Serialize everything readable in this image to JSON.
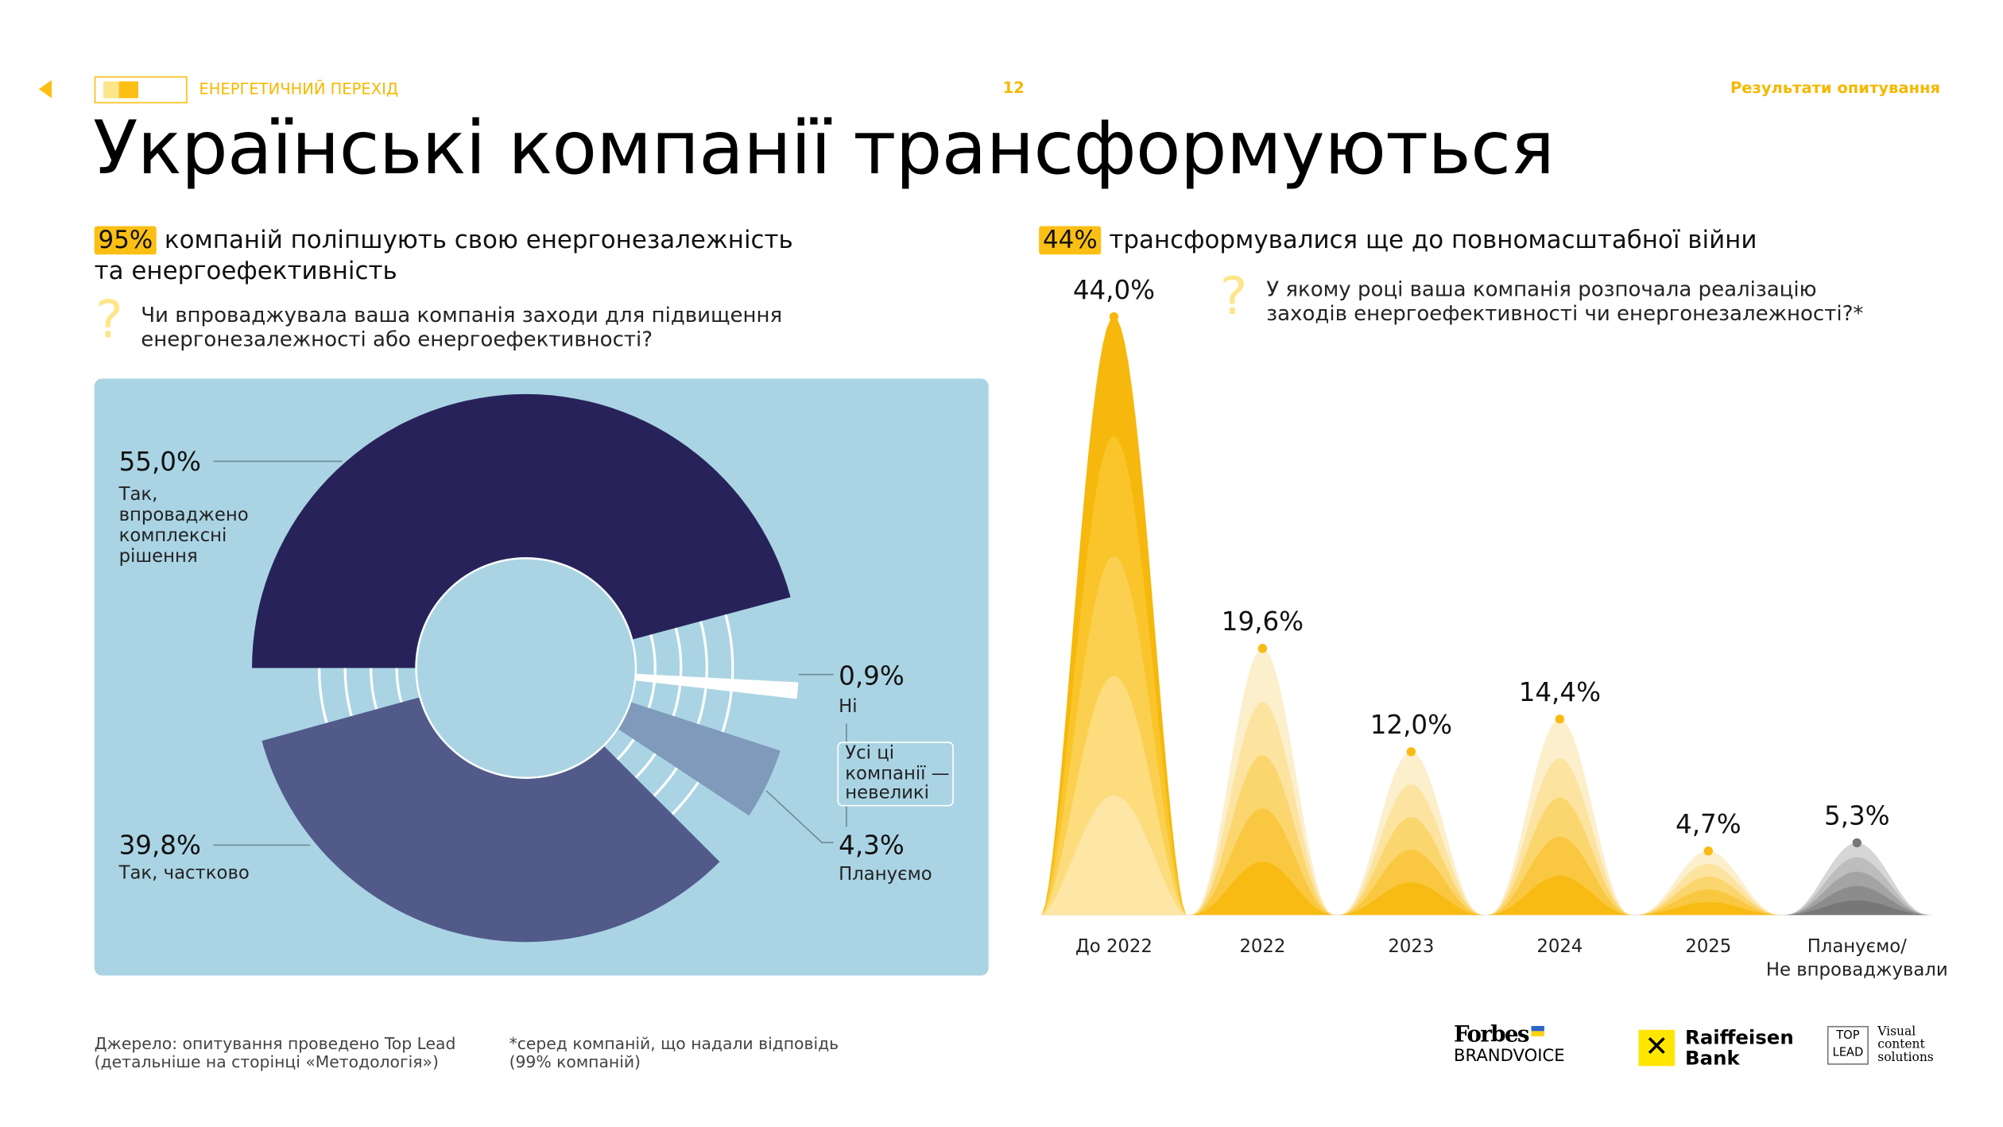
{
  "header": {
    "section": "ЕНЕРГЕТИЧНИЙ ПЕРЕХІД",
    "page": "12",
    "right_link": "Результати опитування"
  },
  "title": "Українські компанії трансформуються",
  "left": {
    "highlight": "95%",
    "subtitle_rest": "компаній поліпшують свою енергонезалежність",
    "subtitle_line2": "та енергоефективність",
    "question_line1": "Чи впроваджувала ваша компанія заходи для підвищення",
    "question_line2": "енергонезалежності або енергоефективності?",
    "note": [
      "Усі ці",
      "компанії —",
      "невеликі"
    ]
  },
  "right": {
    "highlight": "44%",
    "subtitle_rest": "трансформувалися ще до повномасштабної війни",
    "question_line1": "У якому році ваша компанія розпочала реалізацію",
    "question_line2": "заходів енергоефективності чи енергонезалежності?*"
  },
  "chart_data": [
    {
      "type": "pie",
      "style": "donut",
      "slices": [
        {
          "value": 55.0,
          "label": "55,0%",
          "desc": [
            "Так,",
            "впроваджено",
            "комплексні",
            "рішення"
          ],
          "color": "#27235a"
        },
        {
          "value": 0.9,
          "label": "0,9%",
          "desc": [
            "Ні"
          ],
          "color": "#ffffff"
        },
        {
          "value": 4.3,
          "label": "4,3%",
          "desc": [
            "Плануємо"
          ],
          "color": "#7f9aba"
        },
        {
          "value": 39.8,
          "label": "39,8%",
          "desc": [
            "Так, частково"
          ],
          "color": "#525a8a"
        }
      ],
      "background": "#aad4e4"
    },
    {
      "type": "area",
      "style": "peaks",
      "categories": [
        "До 2022",
        "2022",
        "2023",
        "2024",
        "2025",
        "Плануємо/ Не впроваджували"
      ],
      "values": [
        44.0,
        19.6,
        12.0,
        14.4,
        4.7,
        5.3
      ],
      "labels": [
        "44,0%",
        "19,6%",
        "12,0%",
        "14,4%",
        "4,7%",
        "5,3%"
      ],
      "palettes": {
        "first": [
          "#f6b80c",
          "#f9c52a",
          "#fbd050",
          "#fcdc7c",
          "#fde6a6"
        ],
        "regular": [
          "#fcefcc",
          "#fce3a0",
          "#fbd66e",
          "#fac840",
          "#f8bb14"
        ],
        "planned": [
          "#d6d6d6",
          "#bdbdbd",
          "#a4a4a4",
          "#8c8c8c",
          "#777777"
        ]
      }
    }
  ],
  "footer": {
    "source_line1": "Джерело: опитування проведено Top Lead",
    "source_line2": "(детальніше на сторінці «Методологія»)",
    "note_line1": "*серед компаній, що надали відповідь",
    "note_line2": "(99% компаній)",
    "logos": {
      "forbes": "Forbes",
      "brandvoice": "BRANDVOICE",
      "raiffeisen1": "Raiffeisen",
      "raiffeisen2": "Bank",
      "top": "TOP",
      "lead": "LEAD",
      "visual": [
        "Visual",
        "content",
        "solutions"
      ]
    }
  }
}
